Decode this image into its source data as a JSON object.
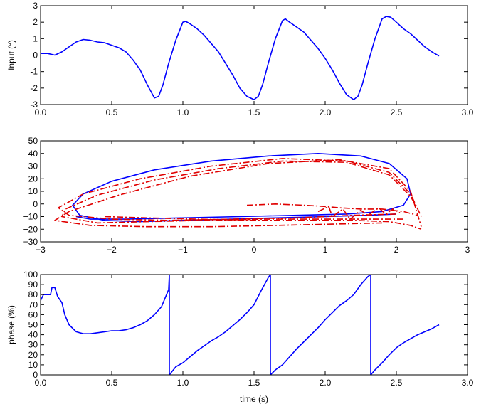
{
  "chart_data": [
    {
      "type": "line",
      "title": "",
      "xlabel": "",
      "ylabel": "Input (°)",
      "xlim": [
        0,
        3
      ],
      "ylim": [
        -3,
        3
      ],
      "xticks": [
        "0.0",
        "0.5",
        "1.0",
        "1.5",
        "2.0",
        "2.5",
        "3.0"
      ],
      "yticks": [
        "3",
        "2",
        "1",
        "0",
        "-1",
        "-2",
        "-3"
      ],
      "grid": false,
      "series": [
        {
          "color": "#0000ff",
          "style": "solid",
          "x": [
            0.0,
            0.05,
            0.1,
            0.15,
            0.2,
            0.25,
            0.3,
            0.35,
            0.4,
            0.45,
            0.5,
            0.55,
            0.6,
            0.65,
            0.7,
            0.75,
            0.8,
            0.83,
            0.86,
            0.9,
            0.95,
            1.0,
            1.02,
            1.05,
            1.1,
            1.15,
            1.2,
            1.25,
            1.3,
            1.35,
            1.4,
            1.45,
            1.5,
            1.53,
            1.56,
            1.6,
            1.65,
            1.7,
            1.72,
            1.75,
            1.8,
            1.85,
            1.9,
            1.95,
            2.0,
            2.05,
            2.1,
            2.15,
            2.2,
            2.23,
            2.26,
            2.3,
            2.35,
            2.4,
            2.43,
            2.46,
            2.5,
            2.55,
            2.6,
            2.65,
            2.7,
            2.75,
            2.8
          ],
          "y": [
            0.1,
            0.1,
            0.0,
            0.2,
            0.5,
            0.8,
            0.95,
            0.9,
            0.8,
            0.75,
            0.6,
            0.45,
            0.2,
            -0.3,
            -0.9,
            -1.8,
            -2.6,
            -2.5,
            -1.8,
            -0.5,
            0.9,
            2.0,
            2.05,
            1.9,
            1.6,
            1.2,
            0.7,
            0.2,
            -0.5,
            -1.2,
            -2.0,
            -2.5,
            -2.7,
            -2.5,
            -1.8,
            -0.5,
            1.0,
            2.1,
            2.2,
            2.0,
            1.7,
            1.4,
            0.9,
            0.4,
            -0.2,
            -0.9,
            -1.7,
            -2.4,
            -2.7,
            -2.5,
            -1.8,
            -0.5,
            1.0,
            2.2,
            2.35,
            2.3,
            2.0,
            1.6,
            1.3,
            0.9,
            0.5,
            0.2,
            -0.05
          ]
        }
      ]
    },
    {
      "type": "line",
      "title": "",
      "xlabel": "",
      "ylabel": "",
      "xlim": [
        -3,
        3
      ],
      "ylim": [
        -30,
        50
      ],
      "xticks": [
        "−3",
        "−2",
        "−1",
        "0",
        "1",
        "2",
        "3"
      ],
      "yticks": [
        "50",
        "40",
        "30",
        "20",
        "10",
        "0",
        "−10",
        "−20",
        "−30"
      ],
      "grid": false,
      "series": [
        {
          "color": "#0000ff",
          "style": "solid",
          "x": [
            2.0,
            1.6,
            1.0,
            0.3,
            -0.3,
            -1.0,
            -1.6,
            -2.1,
            -2.45,
            -2.55,
            -2.4,
            -2.0,
            -1.4,
            -0.6,
            0.2,
            0.9,
            1.5,
            1.9,
            2.15,
            2.2,
            2.1,
            1.8,
            1.3,
            0.6,
            -0.2,
            -1.0,
            -1.8,
            -2.3,
            -2.5
          ],
          "y": [
            -8,
            -9,
            -10,
            -11,
            -12,
            -13,
            -14,
            -13,
            -9,
            -1,
            8,
            18,
            27,
            34,
            38,
            40,
            38,
            32,
            20,
            8,
            -1,
            -6,
            -8,
            -9,
            -10,
            -11,
            -12,
            -12,
            -10
          ]
        },
        {
          "color": "#e00000",
          "style": "dashdot",
          "x": [
            2.1,
            1.5,
            0.8,
            0.1,
            -0.7,
            -1.5,
            -2.2,
            -2.7,
            -2.65,
            -2.2,
            -1.4,
            -0.5,
            0.4,
            1.3,
            1.9,
            2.2,
            2.3
          ],
          "y": [
            -12,
            -12,
            -12,
            -12,
            -13,
            -14,
            -15,
            -10,
            -4,
            7,
            19,
            28,
            34,
            33,
            23,
            6,
            -4
          ]
        },
        {
          "color": "#e00000",
          "style": "dashdot",
          "x": [
            2.0,
            1.4,
            0.6,
            -0.3,
            -1.2,
            -2.0,
            -2.6,
            -2.75,
            -2.4,
            -1.6,
            -0.6,
            0.4,
            1.3,
            1.9,
            2.2,
            2.35
          ],
          "y": [
            -8,
            -9,
            -11,
            -12,
            -13,
            -12,
            -9,
            -3,
            8,
            20,
            30,
            36,
            34,
            25,
            8,
            -10
          ]
        },
        {
          "color": "#e00000",
          "style": "dashdot",
          "x": [
            1.8,
            1.1,
            0.3,
            -0.6,
            -1.5,
            -2.3,
            -2.8,
            -2.6,
            -1.9,
            -0.9,
            0.2,
            1.2,
            1.9,
            2.2,
            2.35
          ],
          "y": [
            -15,
            -16,
            -17,
            -18,
            -18,
            -17,
            -13,
            -6,
            7,
            22,
            32,
            35,
            28,
            10,
            -18
          ]
        },
        {
          "color": "#e00000",
          "style": "dashdot",
          "x": [
            -2.1,
            -1.5,
            -0.8,
            0.0,
            0.8,
            1.4,
            1.9,
            2.2,
            2.35
          ],
          "y": [
            -10,
            -11,
            -12,
            -13,
            -13,
            -13,
            -14,
            -17,
            -20
          ]
        },
        {
          "color": "#e00000",
          "style": "dashdot",
          "x": [
            -0.1,
            0.3,
            0.7,
            1.0,
            1.2,
            1.5,
            1.8,
            2.1,
            2.3
          ],
          "y": [
            -1,
            0,
            -1,
            -2,
            -3,
            -4,
            -4,
            -6,
            -9
          ]
        },
        {
          "color": "#e00000",
          "style": "dashdot",
          "x": [
            0.9,
            1.05,
            1.1,
            1.25,
            1.35,
            1.5,
            1.6,
            1.75,
            1.85,
            1.95,
            2.05
          ],
          "y": [
            -6,
            -2,
            -10,
            -4,
            -12,
            -5,
            -9,
            -3,
            -8,
            -4,
            -7
          ]
        }
      ]
    },
    {
      "type": "line",
      "title": "",
      "xlabel": "time (s)",
      "ylabel": "phase (%)",
      "xlim": [
        0,
        3
      ],
      "ylim": [
        0,
        100
      ],
      "xticks": [
        "0.0",
        "0.5",
        "1.0",
        "1.5",
        "2.0",
        "2.5",
        "3.0"
      ],
      "yticks": [
        "100",
        "90",
        "80",
        "70",
        "60",
        "50",
        "40",
        "30",
        "20",
        "10",
        "0"
      ],
      "grid": false,
      "series": [
        {
          "color": "#0000ff",
          "style": "solid",
          "x": [
            0.0,
            0.02,
            0.07,
            0.08,
            0.1,
            0.12,
            0.15,
            0.17,
            0.2,
            0.25,
            0.3,
            0.35,
            0.4,
            0.45,
            0.5,
            0.55,
            0.6,
            0.65,
            0.7,
            0.75,
            0.8,
            0.85,
            0.9,
            0.905,
            0.905,
            0.95,
            1.0,
            1.05,
            1.1,
            1.15,
            1.2,
            1.25,
            1.3,
            1.35,
            1.4,
            1.45,
            1.5,
            1.55,
            1.6,
            1.615,
            1.615,
            1.65,
            1.7,
            1.75,
            1.8,
            1.85,
            1.9,
            1.95,
            2.0,
            2.05,
            2.1,
            2.15,
            2.2,
            2.25,
            2.3,
            2.32,
            2.32,
            2.35,
            2.4,
            2.45,
            2.5,
            2.55,
            2.6,
            2.65,
            2.7,
            2.75,
            2.8
          ],
          "y": [
            74,
            80,
            80,
            87,
            87,
            78,
            72,
            60,
            50,
            43,
            41,
            41,
            42,
            43,
            44,
            44,
            45,
            47,
            50,
            54,
            60,
            68,
            85,
            100,
            0,
            8,
            12,
            18,
            24,
            29,
            34,
            38,
            43,
            49,
            55,
            62,
            70,
            84,
            97,
            100,
            0,
            5,
            10,
            18,
            26,
            33,
            40,
            47,
            55,
            62,
            69,
            74,
            80,
            90,
            98,
            100,
            0,
            5,
            12,
            20,
            27,
            32,
            36,
            40,
            43,
            46,
            50
          ]
        }
      ]
    }
  ]
}
